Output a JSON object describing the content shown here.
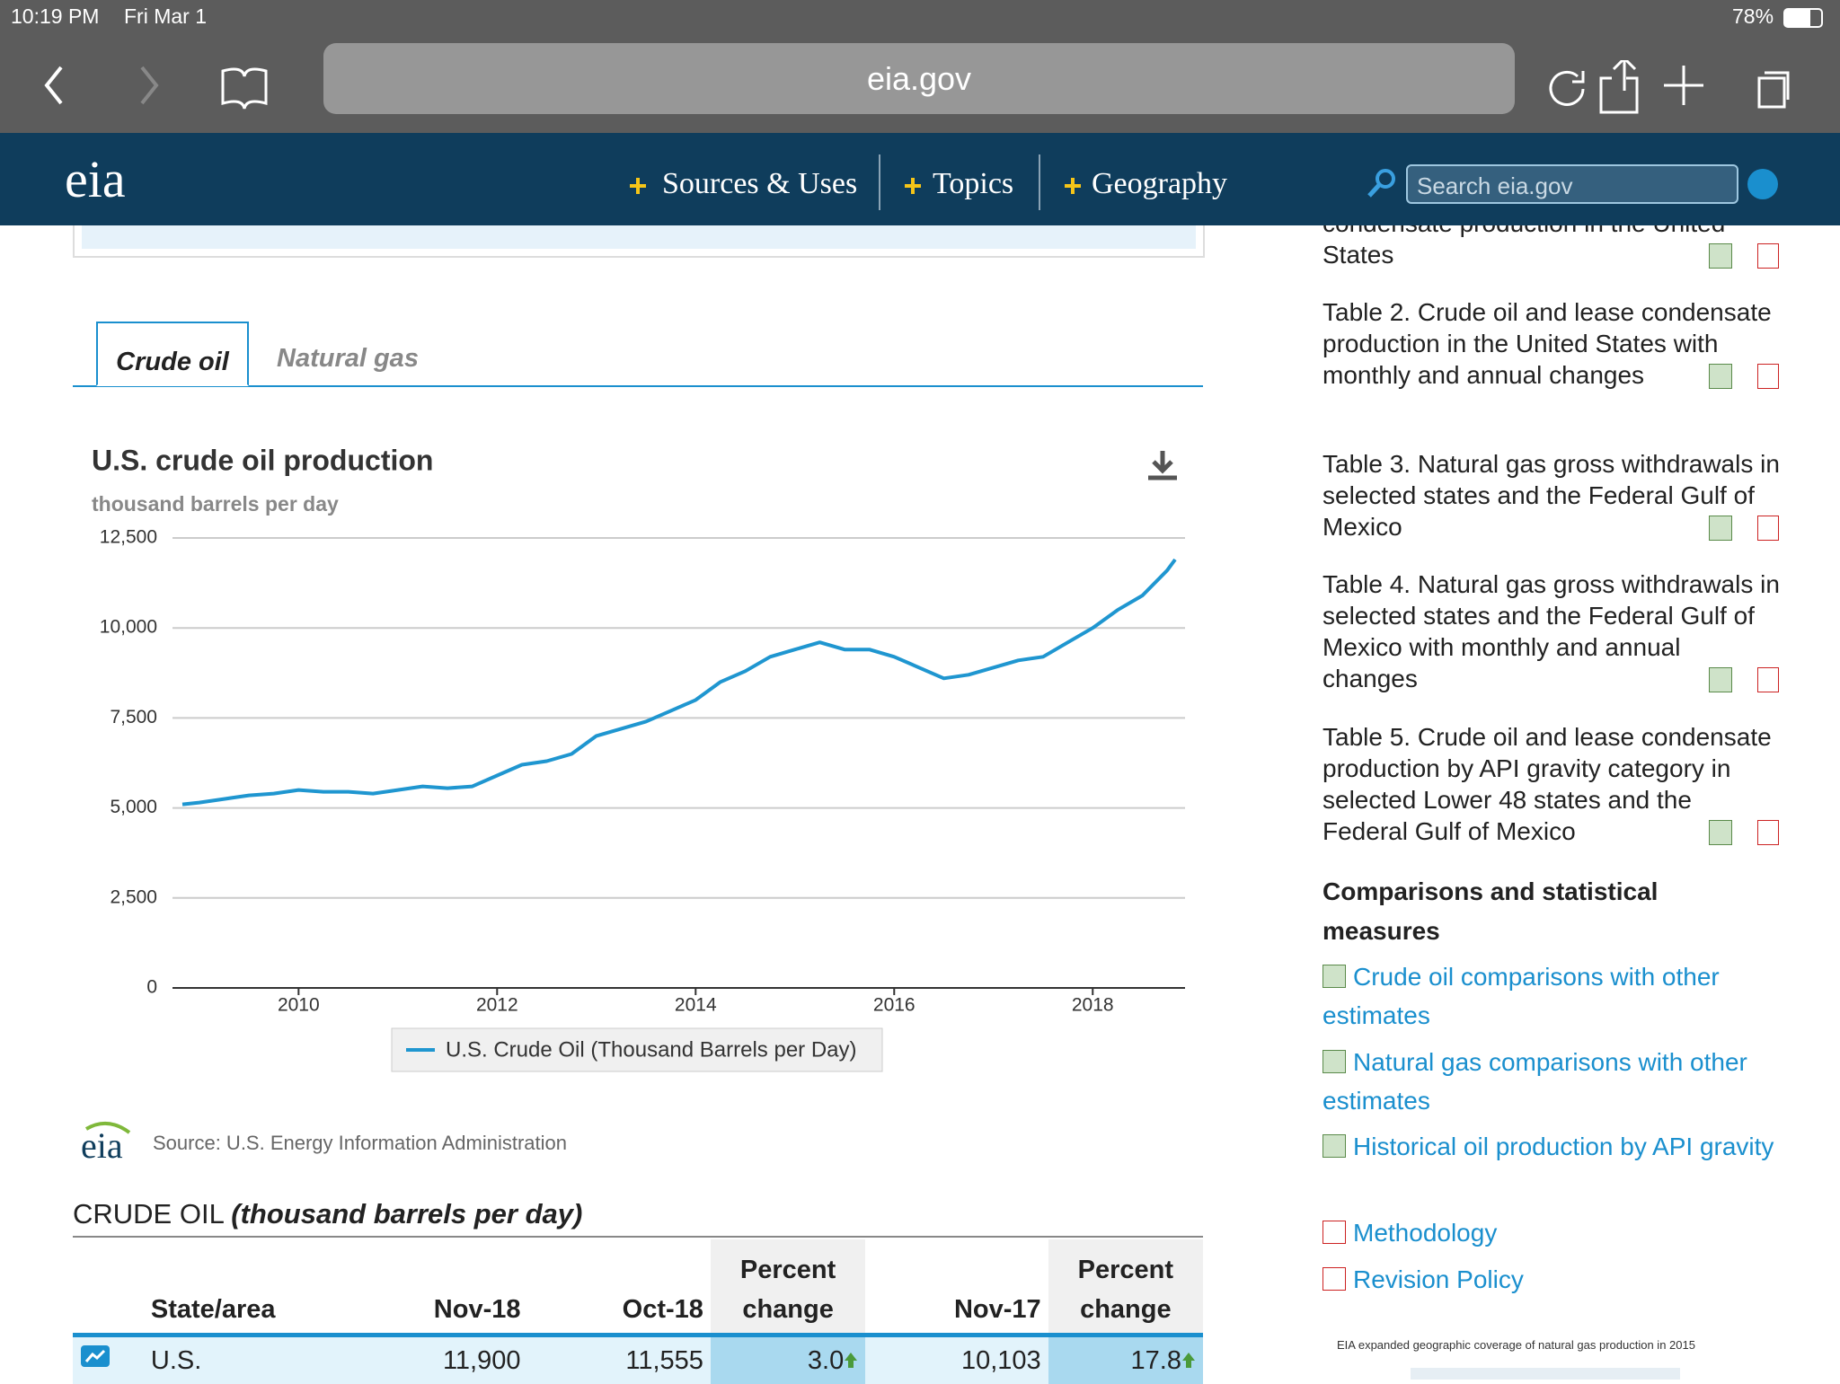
{
  "status": {
    "time": "10:19 PM",
    "date": "Fri Mar 1",
    "battery": "78%"
  },
  "browser": {
    "url": "eia.gov"
  },
  "nav": {
    "logo": "eia",
    "items": [
      "Sources & Uses",
      "Topics",
      "Geography"
    ],
    "search_placeholder": "Search eia.gov"
  },
  "tabs": [
    "Crude oil",
    "Natural gas"
  ],
  "chart_data": {
    "type": "line",
    "title": "U.S. crude oil production",
    "subtitle": "thousand barrels per day",
    "x": [
      2008.83,
      2009.0,
      2009.25,
      2009.5,
      2009.75,
      2010.0,
      2010.25,
      2010.5,
      2010.75,
      2011.0,
      2011.25,
      2011.5,
      2011.75,
      2012.0,
      2012.25,
      2012.5,
      2012.75,
      2013.0,
      2013.25,
      2013.5,
      2013.75,
      2014.0,
      2014.25,
      2014.5,
      2014.75,
      2015.0,
      2015.25,
      2015.5,
      2015.75,
      2016.0,
      2016.25,
      2016.5,
      2016.75,
      2017.0,
      2017.25,
      2017.5,
      2017.75,
      2018.0,
      2018.25,
      2018.5,
      2018.75,
      2018.83
    ],
    "xlim": [
      2008.73,
      2018.93
    ],
    "xticks": [
      2010,
      2012,
      2014,
      2016,
      2018
    ],
    "ylim": [
      0,
      12500
    ],
    "yticks": [
      {
        "value": 0,
        "label": "0"
      },
      {
        "value": 2500,
        "label": "2,500"
      },
      {
        "value": 5000,
        "label": "5,000"
      },
      {
        "value": 7500,
        "label": "7,500"
      },
      {
        "value": 10000,
        "label": "10,000"
      },
      {
        "value": 12500,
        "label": "12,500"
      }
    ],
    "grid": true,
    "series": [
      {
        "name": "U.S. Crude Oil (Thousand Barrels per Day)",
        "color": "#1f96d0",
        "values": [
          5100,
          5150,
          5250,
          5350,
          5400,
          5500,
          5450,
          5450,
          5400,
          5500,
          5600,
          5550,
          5600,
          5900,
          6200,
          6300,
          6500,
          7000,
          7200,
          7400,
          7700,
          8000,
          8500,
          8800,
          9200,
          9400,
          9600,
          9400,
          9400,
          9200,
          8900,
          8600,
          8700,
          8900,
          9100,
          9200,
          9600,
          10000,
          10500,
          10900,
          11600,
          11900
        ]
      }
    ]
  },
  "source": {
    "logo": "eia",
    "text": "Source: U.S. Energy Information Administration"
  },
  "table": {
    "title": "CRUDE OIL",
    "title_note": "(thousand barrels per day)",
    "headers": [
      "State/area",
      "Nov-18",
      "Oct-18",
      "Percent change",
      "Nov-17",
      "Percent change"
    ],
    "rows": [
      [
        "U.S.",
        "11,900",
        "11,555",
        "3.0",
        "10,103",
        "17.8"
      ]
    ]
  },
  "sidebar": {
    "tables": [
      "condensate production in the United States",
      "Table 2. Crude oil and lease condensate production in the United States with monthly and annual changes",
      "Table 3. Natural gas gross withdrawals in selected states and the Federal Gulf of Mexico",
      "Table 4. Natural gas gross withdrawals in selected states and the Federal Gulf of Mexico with monthly and annual changes",
      "Table 5. Crude oil and lease condensate production by API gravity category in selected Lower 48 states and the Federal Gulf of Mexico"
    ],
    "heading": "Comparisons and statistical measures",
    "links": [
      "Crude oil comparisons with other estimates",
      "Natural gas comparisons with other estimates",
      "Historical oil production by API gravity",
      "Methodology",
      "Revision Policy"
    ],
    "caption": "EIA expanded geographic coverage of natural gas production in 2015"
  }
}
